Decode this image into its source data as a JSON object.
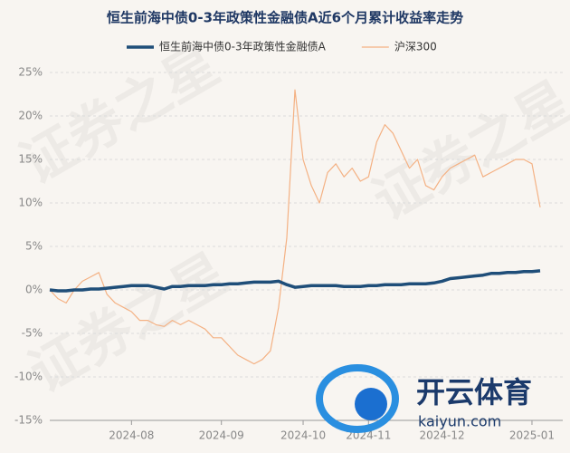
{
  "chart_data": {
    "type": "line",
    "title": "恒生前海中债0-3年政策性金融债A近6个月累计收益率走势",
    "watermark": "证券之星",
    "logo_text": "开云体育",
    "logo_url": "kaiyun.com",
    "categories": [
      null,
      null,
      null,
      null,
      null,
      null,
      null,
      null,
      null,
      null,
      "2024-08",
      null,
      null,
      null,
      null,
      null,
      null,
      null,
      null,
      null,
      null,
      "2024-09",
      null,
      null,
      null,
      null,
      null,
      null,
      null,
      null,
      null,
      "2024-10",
      null,
      null,
      null,
      null,
      null,
      null,
      null,
      "2024-11",
      null,
      null,
      null,
      null,
      null,
      null,
      null,
      null,
      "2024-12",
      null,
      null,
      null,
      null,
      null,
      null,
      null,
      null,
      null,
      null,
      "2025-01",
      null
    ],
    "series": [
      {
        "name": "恒生前海中债0-3年政策性金融债A",
        "color": "#1f4e79",
        "width": 3.5,
        "values": [
          0,
          -0.1,
          -0.1,
          0,
          0,
          0.1,
          0.1,
          0.2,
          0.3,
          0.4,
          0.5,
          0.5,
          0.5,
          0.3,
          0.1,
          0.4,
          0.4,
          0.5,
          0.5,
          0.5,
          0.6,
          0.6,
          0.7,
          0.7,
          0.8,
          0.9,
          0.9,
          0.9,
          1.0,
          0.6,
          0.3,
          0.4,
          0.5,
          0.5,
          0.5,
          0.5,
          0.4,
          0.4,
          0.4,
          0.5,
          0.5,
          0.6,
          0.6,
          0.6,
          0.7,
          0.7,
          0.7,
          0.8,
          1.0,
          1.3,
          1.4,
          1.5,
          1.6,
          1.7,
          1.9,
          1.9,
          2.0,
          2.0,
          2.1,
          2.1,
          2.2
        ]
      },
      {
        "name": "沪深300",
        "color": "#f4b183",
        "width": 1.2,
        "values": [
          0,
          -1,
          -1.5,
          0,
          1,
          1.5,
          2,
          -0.5,
          -1.5,
          -2,
          -2.5,
          -3.5,
          -3.5,
          -4,
          -4.2,
          -3.5,
          -4,
          -3.5,
          -4,
          -4.5,
          -5.5,
          -5.5,
          -6.5,
          -7.5,
          -8,
          -8.5,
          -8,
          -7,
          -2,
          6,
          23,
          15,
          12,
          10,
          13.5,
          14.5,
          13,
          14,
          12.5,
          13,
          17,
          19,
          18,
          16,
          14,
          15,
          12,
          11.5,
          13,
          14,
          14.5,
          15,
          15.5,
          13,
          13.5,
          14,
          14.5,
          15,
          15,
          14.5,
          9.5
        ]
      }
    ],
    "ylim": [
      -15,
      25
    ],
    "yticks": [
      {
        "value": -15,
        "label": "-15%"
      },
      {
        "value": -10,
        "label": "-10%"
      },
      {
        "value": -5,
        "label": "-5%"
      },
      {
        "value": 0,
        "label": "0%"
      },
      {
        "value": 5,
        "label": "5%"
      },
      {
        "value": 10,
        "label": "10%"
      },
      {
        "value": 15,
        "label": "15%"
      },
      {
        "value": 20,
        "label": "20%"
      },
      {
        "value": 25,
        "label": "25%"
      }
    ],
    "grid": true,
    "legend": "top"
  }
}
